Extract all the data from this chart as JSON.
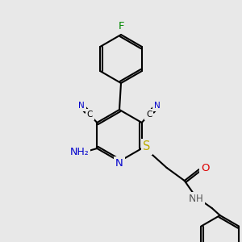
{
  "bg_color": "#e8e8e8",
  "bond_color": "#000000",
  "bond_lw": 1.5,
  "atom_colors": {
    "N": "#0000cc",
    "O": "#dd0000",
    "S": "#bbaa00",
    "F": "#008800",
    "C": "#000000",
    "H": "#555555"
  }
}
